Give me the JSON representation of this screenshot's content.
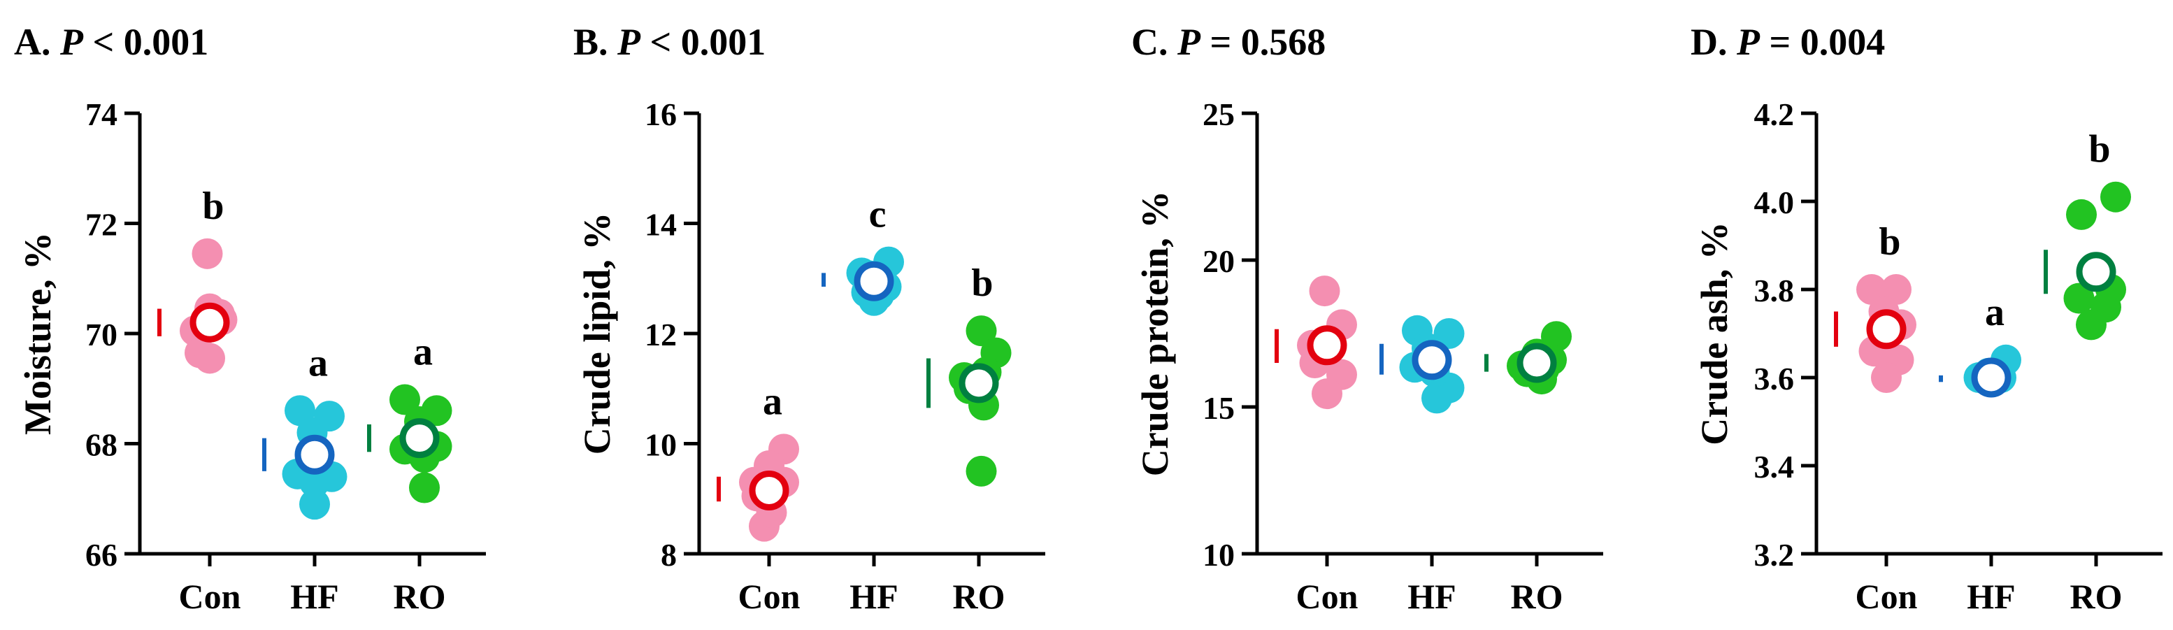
{
  "colors": {
    "Con": "#e3000f",
    "HF": "#1565c0",
    "RO": "#008040",
    "Con_pts": "#f48fb1",
    "HF_pts": "#26c6da",
    "RO_pts": "#22c322"
  },
  "chart_data": [
    {
      "type": "scatter",
      "panel": "A.",
      "p_symbol": "P",
      "p_text": " < 0.001",
      "ylabel": "Moisture, %",
      "ylim": [
        66,
        74
      ],
      "yticks": [
        66,
        68,
        70,
        72,
        74
      ],
      "ytick_labels": [
        "66",
        "68",
        "70",
        "72",
        "74"
      ],
      "categories": [
        "Con",
        "HF",
        "RO"
      ],
      "groups": [
        {
          "name": "Con",
          "mean": 70.2,
          "letter": "b",
          "sem": [
            69.95,
            70.45
          ],
          "points": [
            [
              -0.3,
              70.05
            ],
            [
              -0.2,
              69.65
            ],
            [
              0.0,
              69.55
            ],
            [
              0.2,
              70.35
            ],
            [
              0.25,
              70.25
            ],
            [
              0.0,
              70.45
            ],
            [
              -0.05,
              71.45
            ]
          ]
        },
        {
          "name": "HF",
          "mean": 67.8,
          "letter": "a",
          "sem": [
            67.5,
            68.1
          ],
          "points": [
            [
              -0.3,
              68.6
            ],
            [
              -0.35,
              67.45
            ],
            [
              0.0,
              67.3
            ],
            [
              0.3,
              68.5
            ],
            [
              0.35,
              67.4
            ],
            [
              0.0,
              66.9
            ],
            [
              -0.05,
              68.2
            ]
          ]
        },
        {
          "name": "RO",
          "mean": 68.1,
          "letter": "a",
          "sem": [
            67.85,
            68.35
          ],
          "points": [
            [
              -0.3,
              68.8
            ],
            [
              -0.3,
              67.9
            ],
            [
              0.1,
              67.75
            ],
            [
              0.35,
              68.6
            ],
            [
              0.35,
              67.95
            ],
            [
              0.1,
              67.2
            ],
            [
              0.0,
              68.4
            ]
          ]
        }
      ]
    },
    {
      "type": "scatter",
      "panel": "B.",
      "p_symbol": "P",
      "p_text": " < 0.001",
      "ylabel": "Crude lipid, %",
      "ylim": [
        8,
        16
      ],
      "yticks": [
        8,
        10,
        12,
        14,
        16
      ],
      "ytick_labels": [
        "8",
        "10",
        "12",
        "14",
        "16"
      ],
      "categories": [
        "Con",
        "HF",
        "RO"
      ],
      "groups": [
        {
          "name": "Con",
          "mean": 9.15,
          "letter": "a",
          "sem": [
            8.95,
            9.4
          ],
          "points": [
            [
              -0.3,
              9.3
            ],
            [
              -0.1,
              8.5
            ],
            [
              0.05,
              8.75
            ],
            [
              0.3,
              9.3
            ],
            [
              0.3,
              9.9
            ],
            [
              0.0,
              9.6
            ],
            [
              -0.25,
              9.05
            ]
          ]
        },
        {
          "name": "HF",
          "mean": 12.95,
          "letter": "c",
          "sem": [
            12.85,
            13.1
          ],
          "points": [
            [
              -0.25,
              13.1
            ],
            [
              0.0,
              12.6
            ],
            [
              -0.15,
              12.75
            ],
            [
              0.3,
              13.3
            ],
            [
              0.25,
              12.85
            ],
            [
              0.1,
              12.7
            ],
            [
              -0.1,
              13.05
            ]
          ]
        },
        {
          "name": "RO",
          "mean": 11.1,
          "letter": "b",
          "sem": [
            10.65,
            11.55
          ],
          "points": [
            [
              -0.3,
              11.2
            ],
            [
              0.05,
              12.05
            ],
            [
              0.35,
              11.65
            ],
            [
              0.05,
              9.5
            ],
            [
              0.15,
              11.3
            ],
            [
              0.1,
              10.7
            ],
            [
              -0.2,
              11.0
            ]
          ]
        }
      ]
    },
    {
      "type": "scatter",
      "panel": "C.",
      "p_symbol": "P",
      "p_text": " = 0.568",
      "ylabel": "Crude protein, %",
      "ylim": [
        10,
        25
      ],
      "yticks": [
        10,
        15,
        20,
        25
      ],
      "ytick_labels": [
        "10",
        "15",
        "20",
        "25"
      ],
      "categories": [
        "Con",
        "HF",
        "RO"
      ],
      "groups": [
        {
          "name": "Con",
          "mean": 17.1,
          "letter": "",
          "sem": [
            16.5,
            17.65
          ],
          "points": [
            [
              -0.3,
              17.1
            ],
            [
              -0.05,
              18.95
            ],
            [
              0.3,
              17.8
            ],
            [
              0.3,
              16.1
            ],
            [
              0.0,
              15.45
            ],
            [
              -0.25,
              16.5
            ],
            [
              0.05,
              17.0
            ]
          ]
        },
        {
          "name": "HF",
          "mean": 16.6,
          "letter": "",
          "sem": [
            16.1,
            17.15
          ],
          "points": [
            [
              -0.35,
              16.35
            ],
            [
              -0.3,
              17.6
            ],
            [
              0.1,
              15.3
            ],
            [
              0.35,
              17.5
            ],
            [
              0.35,
              15.65
            ],
            [
              0.05,
              16.2
            ],
            [
              -0.1,
              17.0
            ]
          ]
        },
        {
          "name": "RO",
          "mean": 16.5,
          "letter": "",
          "sem": [
            16.2,
            16.8
          ],
          "points": [
            [
              -0.3,
              16.4
            ],
            [
              0.1,
              15.95
            ],
            [
              0.4,
              17.4
            ],
            [
              0.3,
              16.6
            ],
            [
              -0.2,
              16.2
            ],
            [
              0.0,
              16.8
            ],
            [
              0.15,
              16.3
            ]
          ]
        }
      ]
    },
    {
      "type": "scatter",
      "panel": "D.",
      "p_symbol": "P",
      "p_text": " = 0.004",
      "ylabel": "Crude ash, %",
      "ylim": [
        3.2,
        4.2
      ],
      "yticks": [
        3.2,
        3.4,
        3.6,
        3.8,
        4.0,
        4.2
      ],
      "ytick_labels": [
        "3.2",
        "3.4",
        "3.6",
        "3.8",
        "4.0",
        "4.2"
      ],
      "categories": [
        "Con",
        "HF",
        "RO"
      ],
      "groups": [
        {
          "name": "Con",
          "mean": 3.71,
          "letter": "b",
          "sem": [
            3.67,
            3.75
          ],
          "points": [
            [
              -0.3,
              3.8
            ],
            [
              0.2,
              3.8
            ],
            [
              -0.25,
              3.66
            ],
            [
              0.25,
              3.64
            ],
            [
              0.0,
              3.6
            ],
            [
              -0.05,
              3.75
            ],
            [
              0.3,
              3.72
            ]
          ]
        },
        {
          "name": "HF",
          "mean": 3.6,
          "letter": "a",
          "sem": [
            3.59,
            3.605
          ],
          "points": [
            [
              -0.25,
              3.6
            ],
            [
              0.05,
              3.6
            ],
            [
              0.3,
              3.64
            ],
            [
              0.2,
              3.6
            ],
            [
              -0.1,
              3.595
            ],
            [
              0.1,
              3.605
            ],
            [
              -0.05,
              3.61
            ]
          ]
        },
        {
          "name": "RO",
          "mean": 3.84,
          "letter": "b",
          "sem": [
            3.79,
            3.89
          ],
          "points": [
            [
              -0.3,
              3.97
            ],
            [
              0.4,
              4.01
            ],
            [
              -0.35,
              3.78
            ],
            [
              0.3,
              3.8
            ],
            [
              0.2,
              3.76
            ],
            [
              -0.1,
              3.72
            ],
            [
              0.0,
              3.84
            ]
          ]
        }
      ]
    }
  ]
}
